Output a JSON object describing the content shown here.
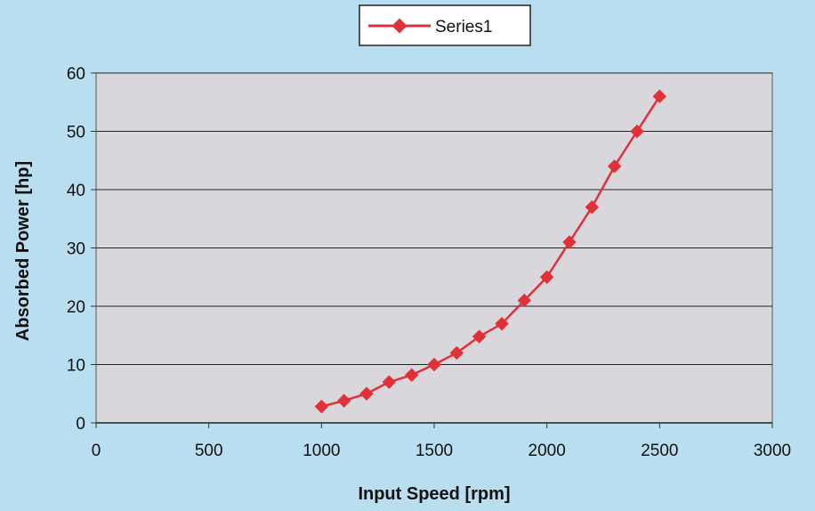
{
  "chart_data": {
    "type": "line",
    "title": "",
    "xlabel": "Input Speed [rpm]",
    "ylabel": "Absorbed Power [hp]",
    "xlim": [
      0,
      3000
    ],
    "ylim": [
      0,
      60
    ],
    "xticks": [
      0,
      500,
      1000,
      1500,
      2000,
      2500,
      3000
    ],
    "yticks": [
      0,
      10,
      20,
      30,
      40,
      50,
      60
    ],
    "grid": "horizontal",
    "legend_position": "top",
    "series": [
      {
        "name": "Series1",
        "color": "#e0313a",
        "marker": "diamond",
        "x": [
          1000,
          1100,
          1200,
          1300,
          1400,
          1500,
          1600,
          1700,
          1800,
          1900,
          2000,
          2100,
          2200,
          2300,
          2400,
          2500
        ],
        "y": [
          2.8,
          3.8,
          5,
          7,
          8.2,
          10,
          12,
          14.8,
          17,
          21,
          25,
          31,
          37,
          44,
          50,
          56
        ]
      }
    ]
  },
  "colors": {
    "page_background": "#b9def0",
    "plot_background": "#d9d6dc",
    "gridline": "#222222",
    "series": "#e0313a"
  }
}
